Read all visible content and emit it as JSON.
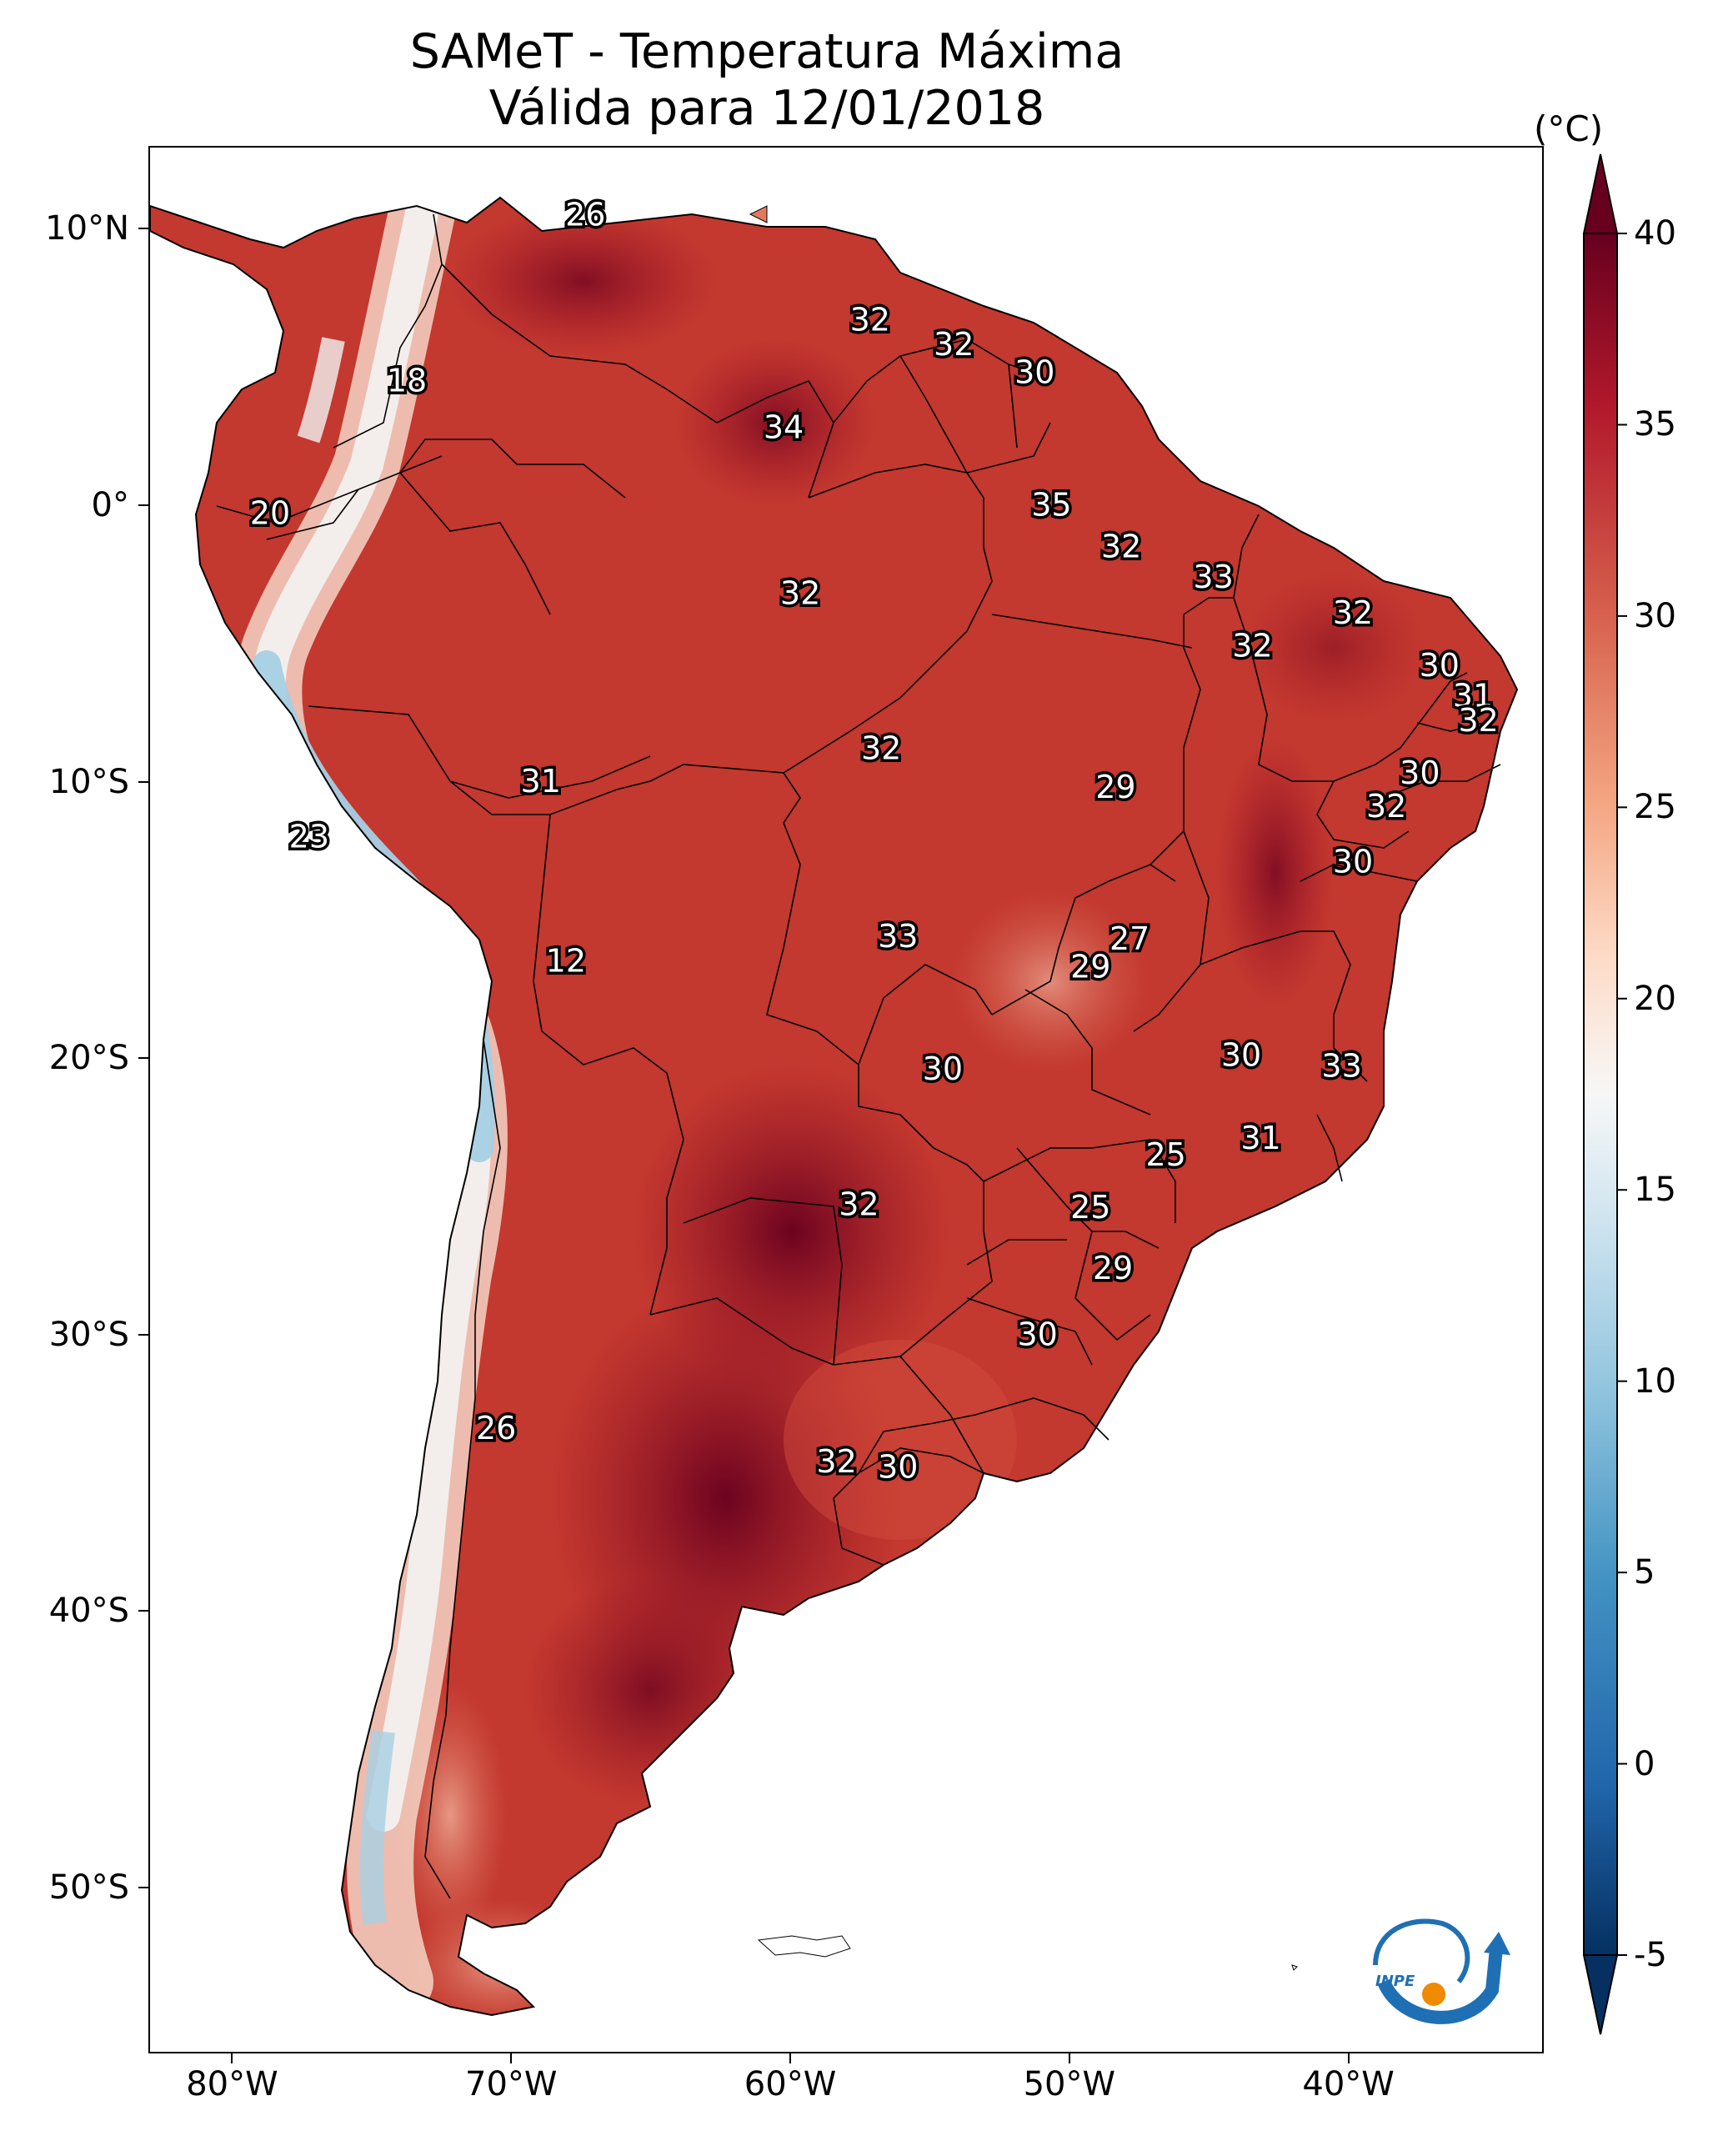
{
  "title": {
    "line1": "SAMeT - Temperatura Máxima",
    "line2": "Válida para 12/01/2018"
  },
  "colorbar": {
    "unit": "(°C)",
    "ticks": [
      "40",
      "35",
      "30",
      "25",
      "20",
      "15",
      "10",
      "5",
      "0",
      "-5"
    ],
    "tick_values": [
      40,
      35,
      30,
      25,
      20,
      15,
      10,
      5,
      0,
      -5
    ],
    "range": [
      -5,
      40
    ],
    "colors": [
      "#053061",
      "#2166ac",
      "#4393c3",
      "#92c5de",
      "#d1e5f0",
      "#f7f7f7",
      "#fddbc7",
      "#f4a582",
      "#d6604d",
      "#b2182b",
      "#67001f"
    ]
  },
  "axes": {
    "lat_labels": [
      "10°N",
      "0°",
      "10°S",
      "20°S",
      "30°S",
      "40°S",
      "50°S"
    ],
    "lat_values": [
      10,
      0,
      -10,
      -20,
      -30,
      -40,
      -50
    ],
    "lon_labels": [
      "80°W",
      "70°W",
      "60°W",
      "50°W",
      "40°W"
    ],
    "lon_values": [
      -80,
      -70,
      -60,
      -50,
      -40
    ],
    "lat_range": [
      -56,
      13
    ],
    "lon_range": [
      -83,
      -33
    ]
  },
  "stations": [
    {
      "value": "26",
      "lon": -67.4,
      "lat": 10.5
    },
    {
      "value": "18",
      "lon": -73.8,
      "lat": 4.5
    },
    {
      "value": "32",
      "lon": -57.2,
      "lat": 6.7
    },
    {
      "value": "32",
      "lon": -54.2,
      "lat": 5.8
    },
    {
      "value": "30",
      "lon": -51.3,
      "lat": 4.8
    },
    {
      "value": "34",
      "lon": -60.3,
      "lat": 2.8
    },
    {
      "value": "20",
      "lon": -78.7,
      "lat": -0.3
    },
    {
      "value": "35",
      "lon": -50.7,
      "lat": 0.0
    },
    {
      "value": "32",
      "lon": -48.2,
      "lat": -1.5
    },
    {
      "value": "33",
      "lon": -44.9,
      "lat": -2.6
    },
    {
      "value": "32",
      "lon": -59.7,
      "lat": -3.2
    },
    {
      "value": "32",
      "lon": -39.9,
      "lat": -3.9
    },
    {
      "value": "32",
      "lon": -43.5,
      "lat": -5.1
    },
    {
      "value": "30",
      "lon": -36.8,
      "lat": -5.8
    },
    {
      "value": "31",
      "lon": -35.6,
      "lat": -6.9
    },
    {
      "value": "32",
      "lon": -35.4,
      "lat": -7.8
    },
    {
      "value": "32",
      "lon": -56.8,
      "lat": -8.8
    },
    {
      "value": "30",
      "lon": -37.5,
      "lat": -9.7
    },
    {
      "value": "31",
      "lon": -69.0,
      "lat": -10.0
    },
    {
      "value": "29",
      "lon": -48.4,
      "lat": -10.2
    },
    {
      "value": "32",
      "lon": -38.7,
      "lat": -10.9
    },
    {
      "value": "23",
      "lon": -77.3,
      "lat": -12.0
    },
    {
      "value": "30",
      "lon": -39.9,
      "lat": -12.9
    },
    {
      "value": "33",
      "lon": -56.2,
      "lat": -15.6
    },
    {
      "value": "27",
      "lon": -47.9,
      "lat": -15.7
    },
    {
      "value": "29",
      "lon": -49.3,
      "lat": -16.7
    },
    {
      "value": "12",
      "lon": -68.1,
      "lat": -16.5
    },
    {
      "value": "30",
      "lon": -43.9,
      "lat": -19.9
    },
    {
      "value": "33",
      "lon": -40.3,
      "lat": -20.3
    },
    {
      "value": "30",
      "lon": -54.6,
      "lat": -20.4
    },
    {
      "value": "31",
      "lon": -43.2,
      "lat": -22.9
    },
    {
      "value": "25",
      "lon": -46.6,
      "lat": -23.5
    },
    {
      "value": "32",
      "lon": -57.6,
      "lat": -25.3
    },
    {
      "value": "25",
      "lon": -49.3,
      "lat": -25.4
    },
    {
      "value": "29",
      "lon": -48.5,
      "lat": -27.6
    },
    {
      "value": "30",
      "lon": -51.2,
      "lat": -30.0
    },
    {
      "value": "26",
      "lon": -70.6,
      "lat": -33.4
    },
    {
      "value": "32",
      "lon": -58.4,
      "lat": -34.6
    },
    {
      "value": "30",
      "lon": -56.2,
      "lat": -34.8
    }
  ],
  "logo": {
    "text": "INPE"
  }
}
